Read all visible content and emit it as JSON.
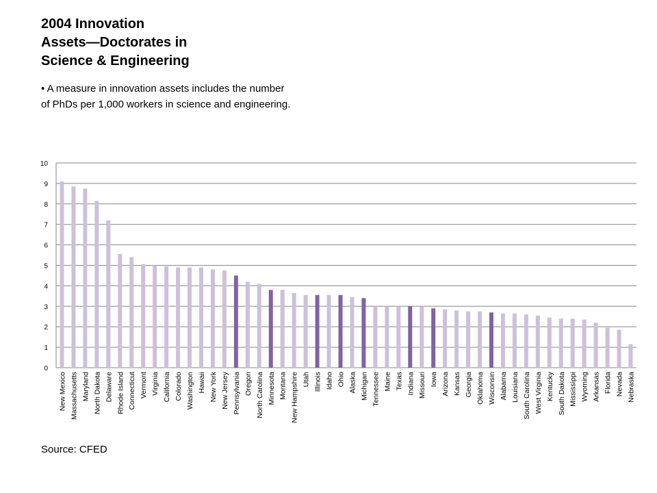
{
  "title_lines": [
    "2004 Innovation",
    "Assets—Doctorates in",
    "Science & Engineering"
  ],
  "bullet_lines": [
    "• A measure in innovation assets includes the number",
    "of PhDs per 1,000 workers in science and engineering."
  ],
  "source": "Source: CFED",
  "colors": {
    "light": "#ccc1da",
    "dark": "#8064a2",
    "grid": "#868686"
  },
  "chart_data": {
    "type": "bar",
    "title": "",
    "xlabel": "",
    "ylabel": "",
    "ylim": [
      0,
      10
    ],
    "yticks": [
      0,
      1,
      2,
      3,
      4,
      5,
      6,
      7,
      8,
      9,
      10
    ],
    "grid": true,
    "categories": [
      "New Mexico",
      "Massachusetts",
      "Maryland",
      "North Dakota",
      "Delaware",
      "Rhode Island",
      "Connecticut",
      "Vermont",
      "Virginia",
      "California",
      "Colorado",
      "Washington",
      "Hawaii",
      "New York",
      "New Jersey",
      "Pennsylvania",
      "Oregon",
      "North Carolina",
      "Minnesota",
      "Montana",
      "New Hampshire",
      "Utah",
      "Illinois",
      "Idaho",
      "Ohio",
      "Alaska",
      "Michigan",
      "Tennessee",
      "Maine",
      "Texas",
      "Indiana",
      "Missouri",
      "Iowa",
      "Arizona",
      "Kansas",
      "Georgia",
      "Oklahoma",
      "Wisconsin",
      "Alabama",
      "Louisiana",
      "South Carolina",
      "West Virginia",
      "Kentucky",
      "South Dakota",
      "Mississippi",
      "Wyoming",
      "Arkansas",
      "Florida",
      "Nevada",
      "Nebraska"
    ],
    "values": [
      9.1,
      8.85,
      8.75,
      8.15,
      7.2,
      5.55,
      5.4,
      5.05,
      5.0,
      4.95,
      4.9,
      4.9,
      4.9,
      4.8,
      4.75,
      4.5,
      4.2,
      4.1,
      3.8,
      3.8,
      3.65,
      3.55,
      3.55,
      3.55,
      3.55,
      3.45,
      3.4,
      3.0,
      3.0,
      3.0,
      3.0,
      3.0,
      2.9,
      2.85,
      2.8,
      2.75,
      2.75,
      2.7,
      2.65,
      2.65,
      2.6,
      2.55,
      2.45,
      2.4,
      2.4,
      2.35,
      2.2,
      1.95,
      1.85,
      1.15
    ],
    "highlighted": [
      "Pennsylvania",
      "Minnesota",
      "Illinois",
      "Ohio",
      "Michigan",
      "Indiana",
      "Iowa",
      "Wisconsin"
    ]
  }
}
